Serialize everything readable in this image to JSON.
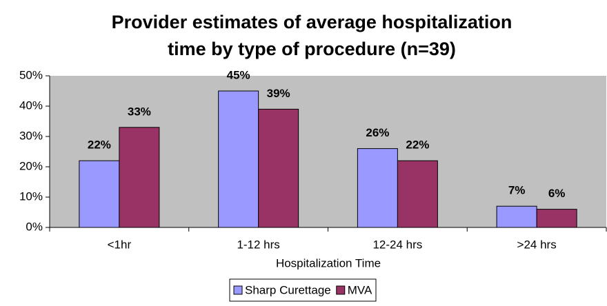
{
  "chart_data": {
    "type": "bar",
    "title": [
      "Provider estimates of average hospitalization",
      "time by type of procedure (n=39)"
    ],
    "x_label": "Hospitalization Time",
    "categories": [
      "<1hr",
      "1-12 hrs",
      "12-24 hrs",
      ">24 hrs"
    ],
    "series": [
      {
        "name": "Sharp Curettage",
        "color": "#9999ff",
        "values": [
          22,
          45,
          26,
          7
        ],
        "value_labels": [
          "22%",
          "45%",
          "26%",
          "7%"
        ]
      },
      {
        "name": "MVA",
        "color": "#993366",
        "values": [
          33,
          39,
          22,
          6
        ],
        "value_labels": [
          "33%",
          "39%",
          "22%",
          "6%"
        ]
      }
    ],
    "ylim": [
      0,
      50
    ],
    "yticks": [
      {
        "value": 0,
        "label": "0%"
      },
      {
        "value": 10,
        "label": "10%"
      },
      {
        "value": 20,
        "label": "20%"
      },
      {
        "value": 30,
        "label": "30%"
      },
      {
        "value": 40,
        "label": "40%"
      },
      {
        "value": 50,
        "label": "50%"
      }
    ],
    "legend": "bottom"
  }
}
